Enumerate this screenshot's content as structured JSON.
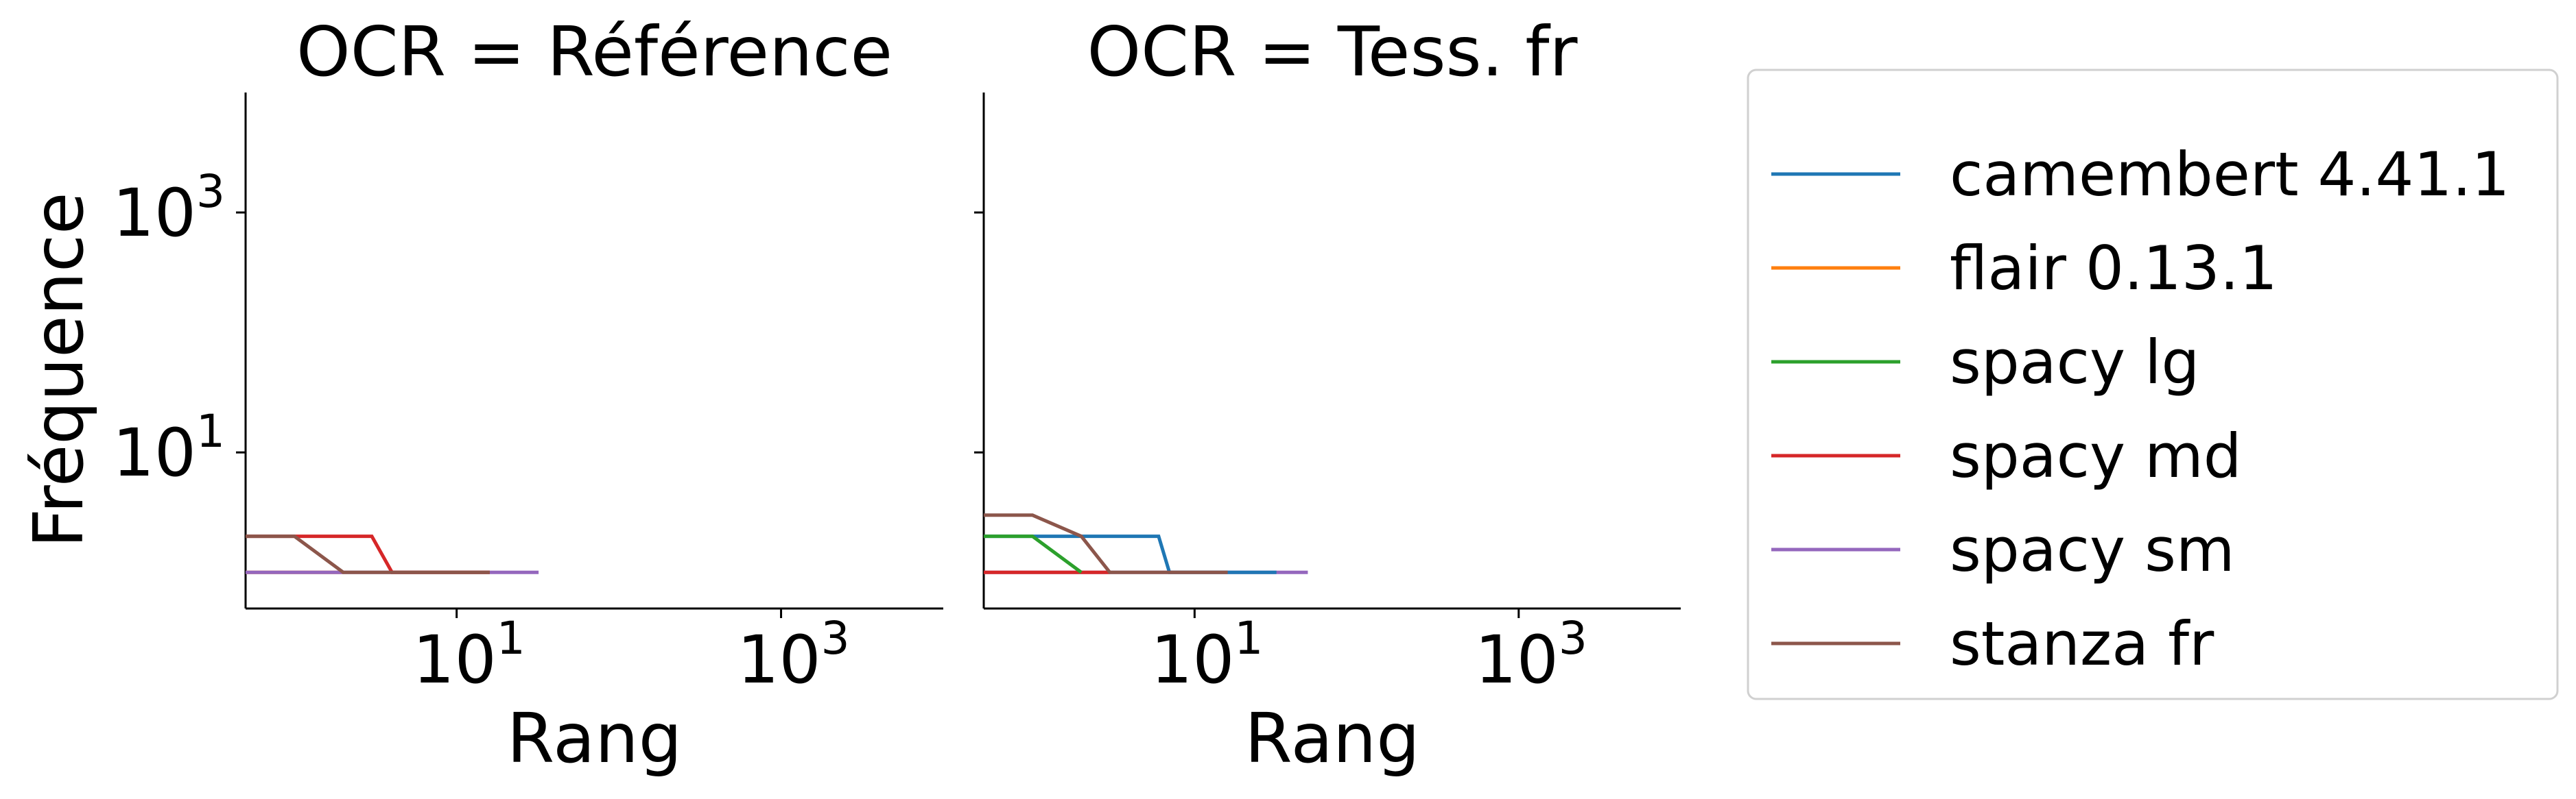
{
  "chart_data": {
    "type": "line",
    "ylabel": "Fréquence",
    "xscale": "log",
    "yscale": "log",
    "xlim": [
      0.5,
      10000
    ],
    "ylim": [
      0.5,
      10000
    ],
    "legend_placement": "outside-right",
    "grid": false,
    "x_ticks": [
      {
        "base": "10",
        "exp": "1",
        "value": 10
      },
      {
        "base": "10",
        "exp": "3",
        "value": 1000
      }
    ],
    "y_ticks": [
      {
        "base": "10",
        "exp": "1",
        "value": 10
      },
      {
        "base": "10",
        "exp": "3",
        "value": 1000
      }
    ],
    "legend": [
      {
        "name": "camembert 4.41.1",
        "color": "#1f77b4"
      },
      {
        "name": "flair 0.13.1",
        "color": "#ff7f0e"
      },
      {
        "name": "spacy lg",
        "color": "#2ca02c"
      },
      {
        "name": "spacy md",
        "color": "#d62728"
      },
      {
        "name": "spacy sm",
        "color": "#9467bd"
      },
      {
        "name": "stanza fr",
        "color": "#8c564b"
      }
    ],
    "panels": [
      {
        "title": "OCR = Référence",
        "xlabel": "Rang",
        "series": [
          {
            "name": "flair 0.13.1",
            "color": "#ff7f0e",
            "x": [
              0.5,
              1,
              2
            ],
            "y": [
              1,
              1,
              1
            ]
          },
          {
            "name": "spacy sm",
            "color": "#9467bd",
            "x": [
              0.5,
              1,
              2,
              4,
              8,
              16,
              32
            ],
            "y": [
              1,
              1,
              1,
              1,
              1,
              1,
              1
            ]
          },
          {
            "name": "spacy md",
            "color": "#d62728",
            "x": [
              0.5,
              1,
              2,
              3,
              4,
              8,
              16
            ],
            "y": [
              2,
              2,
              2,
              2,
              1,
              1,
              1
            ]
          },
          {
            "name": "stanza fr",
            "color": "#8c564b",
            "x": [
              0.5,
              1,
              2,
              4,
              8,
              16
            ],
            "y": [
              2,
              2,
              1,
              1,
              1,
              1
            ]
          }
        ]
      },
      {
        "title": "OCR = Tess. fr",
        "xlabel": "Rang",
        "series": [
          {
            "name": "spacy sm",
            "color": "#9467bd",
            "x": [
              0.5,
              1,
              2,
              4,
              8,
              16,
              32,
              50
            ],
            "y": [
              1,
              1,
              1,
              1,
              1,
              1,
              1,
              1
            ]
          },
          {
            "name": "spacy md",
            "color": "#d62728",
            "x": [
              0.5,
              1,
              2,
              3
            ],
            "y": [
              1,
              1,
              1,
              1
            ]
          },
          {
            "name": "camembert 4.41.1",
            "color": "#1f77b4",
            "x": [
              0.5,
              1,
              2,
              4,
              6,
              7,
              16,
              32
            ],
            "y": [
              2,
              2,
              2,
              2,
              2,
              1,
              1,
              1
            ]
          },
          {
            "name": "spacy lg",
            "color": "#2ca02c",
            "x": [
              0.5,
              1,
              2
            ],
            "y": [
              2,
              2,
              1
            ]
          },
          {
            "name": "stanza fr",
            "color": "#8c564b",
            "x": [
              0.5,
              1,
              2,
              3,
              8,
              16
            ],
            "y": [
              3,
              3,
              2,
              1,
              1,
              1
            ]
          }
        ]
      }
    ]
  }
}
